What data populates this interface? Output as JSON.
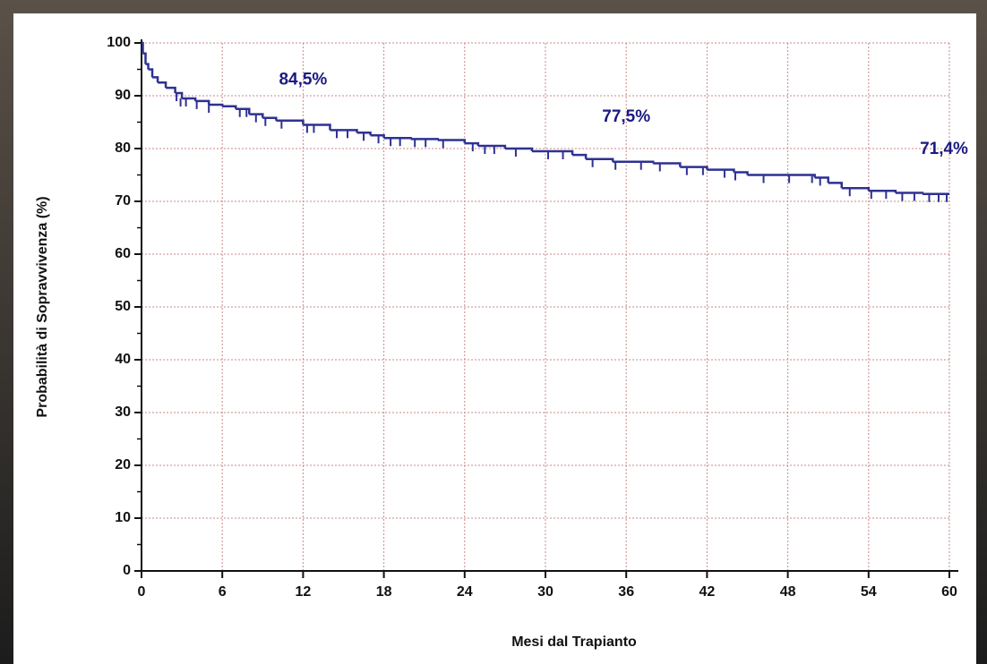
{
  "chart_data": {
    "type": "line",
    "step": true,
    "x_label": "Mesi dal Trapianto",
    "y_label": "Probabilità di Sopravvivenza (%)",
    "xlim": [
      0,
      60
    ],
    "xticks": [
      0,
      6,
      12,
      18,
      24,
      30,
      36,
      42,
      48,
      54,
      60
    ],
    "ylim": [
      0,
      100
    ],
    "yticks": [
      0,
      10,
      20,
      30,
      40,
      50,
      60,
      70,
      80,
      90,
      100
    ],
    "grid": true,
    "color": "#2e3192",
    "x": [
      0,
      0.1,
      0.3,
      0.5,
      0.8,
      1.2,
      1.8,
      2.5,
      3,
      4,
      5,
      6,
      7,
      8,
      9,
      10,
      12,
      14,
      16,
      17,
      18,
      20,
      22,
      24,
      25,
      27,
      29,
      32,
      33,
      35,
      38,
      40,
      42,
      44,
      45,
      50,
      51,
      52,
      54,
      56,
      58,
      60
    ],
    "values": [
      100,
      98,
      96,
      95,
      93.5,
      92.5,
      91.5,
      90.5,
      89.5,
      89,
      88.3,
      88,
      87.5,
      86.5,
      85.8,
      85.3,
      84.5,
      83.5,
      83,
      82.5,
      82,
      81.8,
      81.6,
      81,
      80.5,
      80,
      79.5,
      78.8,
      78,
      77.5,
      77.2,
      76.5,
      76,
      75.5,
      75,
      74.5,
      73.5,
      72.5,
      72,
      71.6,
      71.4,
      71.4
    ],
    "censored": {
      "x": [
        2.6,
        2.9,
        3.3,
        4.1,
        5.0,
        7.3,
        7.8,
        8.5,
        9.2,
        10.4,
        12.3,
        12.8,
        14.5,
        15.3,
        16.5,
        17.6,
        18.5,
        19.2,
        20.3,
        21.1,
        22.4,
        24.6,
        25.5,
        26.2,
        27.8,
        30.2,
        31.3,
        33.5,
        35.2,
        37.1,
        38.5,
        40.5,
        41.7,
        43.3,
        44.1,
        46.2,
        48.1,
        49.8,
        50.4,
        52.6,
        54.2,
        55.3,
        56.5,
        57.4,
        58.5,
        59.2,
        59.8
      ],
      "values": [
        90.5,
        89.5,
        89.5,
        89,
        88.3,
        87.5,
        87.5,
        86.5,
        85.8,
        85.3,
        84.5,
        84.5,
        83.5,
        83.5,
        83,
        82.5,
        82,
        82,
        81.8,
        81.8,
        81.6,
        81,
        80.5,
        80.5,
        80,
        79.5,
        79.5,
        78,
        77.5,
        77.5,
        77.2,
        76.5,
        76.5,
        76,
        75.5,
        75,
        75,
        75,
        74.5,
        72.5,
        72,
        72,
        71.6,
        71.6,
        71.4,
        71.4,
        71.4
      ]
    },
    "milestones": {
      "x": [
        12,
        36,
        60
      ],
      "values": [
        84.5,
        77.5,
        71.4
      ],
      "value_labels": [
        "84,5%",
        "77,5%",
        "71,4%"
      ]
    }
  }
}
